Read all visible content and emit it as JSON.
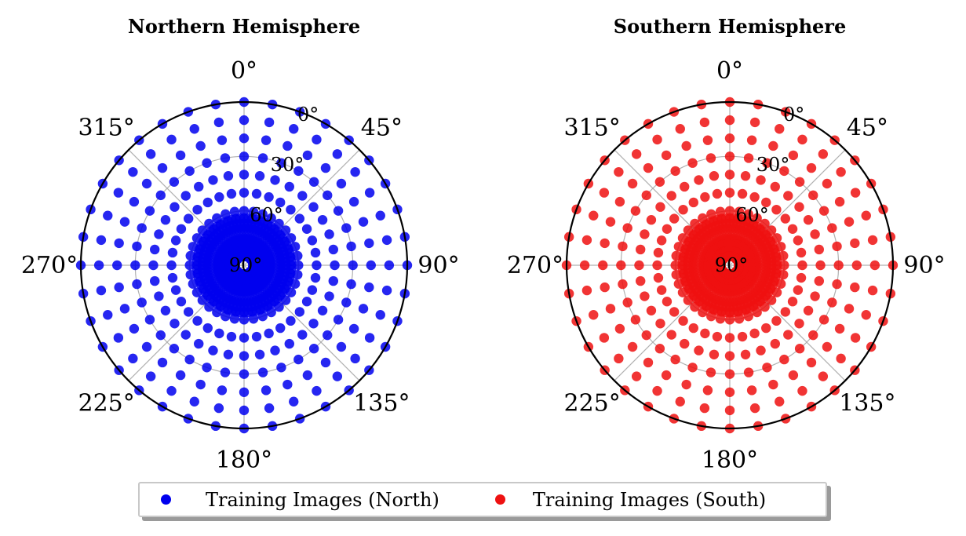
{
  "chart_data": [
    {
      "type": "scatter",
      "projection": "polar",
      "title": "Northern Hemisphere",
      "theta_direction": "clockwise",
      "theta_zero": "top",
      "angular_ticks": [
        "0°",
        "45°",
        "90°",
        "135°",
        "180°",
        "225°",
        "270°",
        "315°"
      ],
      "radial_ticks": [
        "0°",
        "30°",
        "60°",
        "90°"
      ],
      "radial_axis": "elevation",
      "radial_range": [
        0,
        90
      ],
      "grid": true,
      "series": [
        {
          "name": "Training Images (North)",
          "color": "#0000ee",
          "rings": [
            {
              "elevation": 0,
              "azimuth_step": 10
            },
            {
              "elevation": 10,
              "azimuth_step": 10
            },
            {
              "elevation": 20,
              "azimuth_step": 10
            },
            {
              "elevation": 30,
              "azimuth_step": 10
            },
            {
              "elevation": 40,
              "azimuth_step": 10
            },
            {
              "elevation": 50,
              "azimuth_step": 10
            },
            {
              "elevation": 60,
              "azimuth_step": 10
            },
            {
              "elevation": 64,
              "azimuth_step": 5
            },
            {
              "elevation": 67,
              "azimuth_step": 5
            },
            {
              "elevation": 70,
              "azimuth_step": 5
            },
            {
              "elevation": 75,
              "azimuth_step": 5
            },
            {
              "elevation": 78,
              "azimuth_step": 5
            },
            {
              "elevation": 82,
              "azimuth_step": 5
            },
            {
              "elevation": 85,
              "azimuth_step": 5
            }
          ]
        }
      ]
    },
    {
      "type": "scatter",
      "projection": "polar",
      "title": "Southern Hemisphere",
      "theta_direction": "clockwise",
      "theta_zero": "top",
      "angular_ticks": [
        "0°",
        "45°",
        "90°",
        "135°",
        "180°",
        "225°",
        "270°",
        "315°"
      ],
      "radial_ticks": [
        "0°",
        "30°",
        "60°",
        "90°"
      ],
      "radial_axis": "elevation",
      "radial_range": [
        0,
        90
      ],
      "grid": true,
      "series": [
        {
          "name": "Training Images (South)",
          "color": "#ee1111",
          "rings": [
            {
              "elevation": 0,
              "azimuth_step": 10
            },
            {
              "elevation": 10,
              "azimuth_step": 10
            },
            {
              "elevation": 20,
              "azimuth_step": 10
            },
            {
              "elevation": 30,
              "azimuth_step": 10
            },
            {
              "elevation": 40,
              "azimuth_step": 10
            },
            {
              "elevation": 50,
              "azimuth_step": 10
            },
            {
              "elevation": 60,
              "azimuth_step": 10
            },
            {
              "elevation": 64,
              "azimuth_step": 5
            },
            {
              "elevation": 67,
              "azimuth_step": 5
            },
            {
              "elevation": 70,
              "azimuth_step": 5
            },
            {
              "elevation": 75,
              "azimuth_step": 5
            },
            {
              "elevation": 78,
              "azimuth_step": 5
            },
            {
              "elevation": 82,
              "azimuth_step": 5
            },
            {
              "elevation": 85,
              "azimuth_step": 5
            }
          ]
        }
      ]
    }
  ],
  "legend": {
    "placement": "bottom-center",
    "items": [
      {
        "label": "Training Images (North)",
        "color": "#0000ee"
      },
      {
        "label": "Training Images (South)",
        "color": "#ee1111"
      }
    ]
  }
}
